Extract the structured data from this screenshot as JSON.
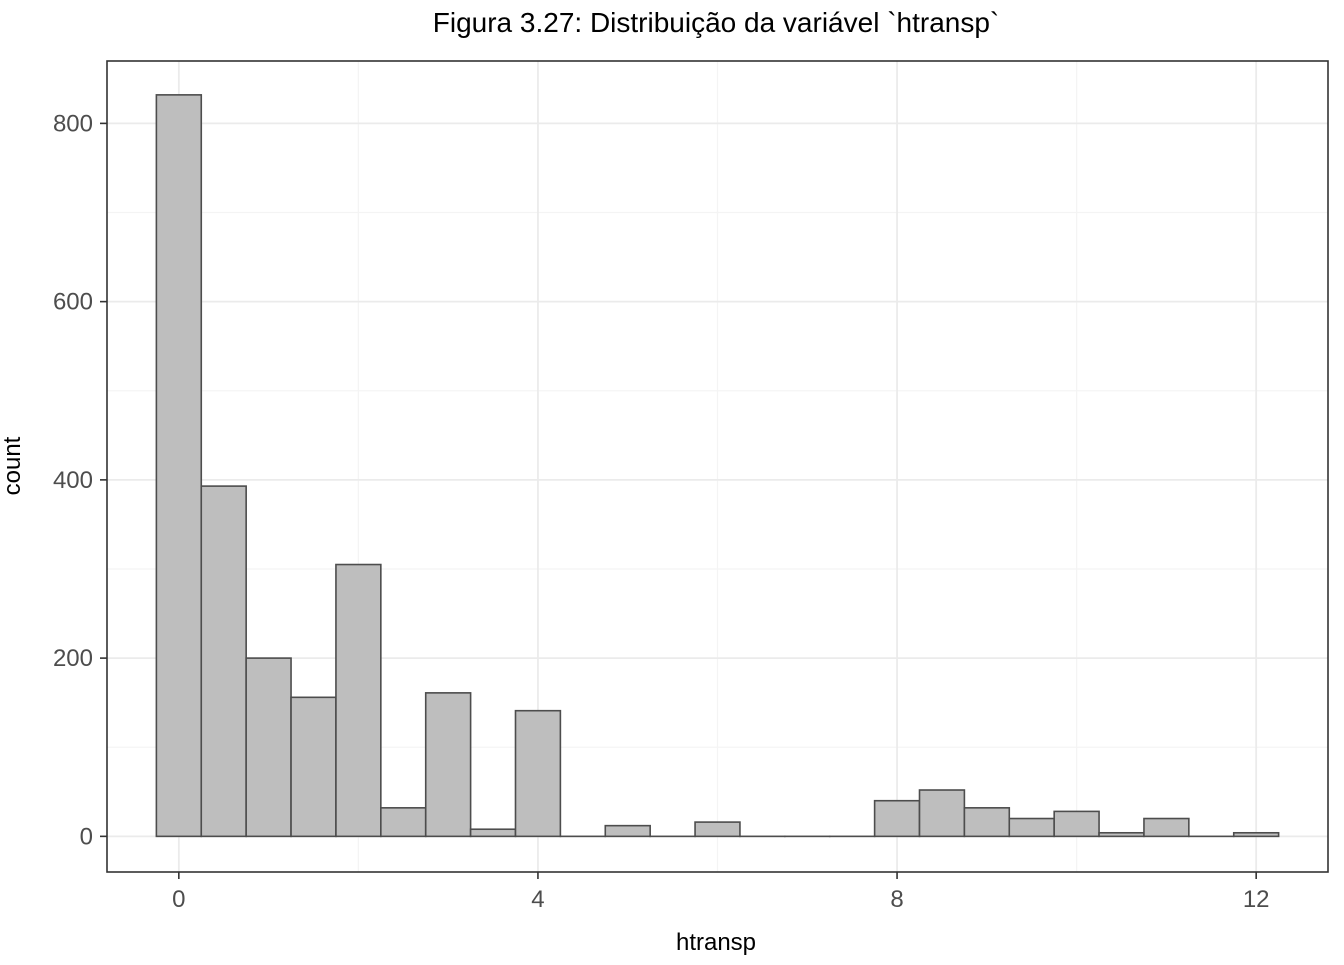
{
  "chart_data": {
    "type": "bar",
    "title": "Figura 3.27: Distribuição da variável `htransp`",
    "xlabel": "htransp",
    "ylabel": "count",
    "xlim": [
      -0.8,
      12.8
    ],
    "ylim": [
      -40,
      870
    ],
    "x_ticks": [
      0,
      4,
      8,
      12
    ],
    "y_ticks": [
      0,
      200,
      400,
      600,
      800
    ],
    "x_minor_ticks": [
      2,
      6,
      10
    ],
    "y_minor_ticks": [
      100,
      300,
      500,
      700
    ],
    "bin_width": 0.5,
    "bin_centers": [
      0,
      0.5,
      1,
      1.5,
      2,
      2.5,
      3,
      3.5,
      4,
      4.5,
      5,
      5.5,
      6,
      6.5,
      7,
      7.5,
      8,
      8.5,
      9,
      9.5,
      10,
      10.5,
      11,
      11.5,
      12
    ],
    "values": [
      832,
      393,
      200,
      156,
      305,
      32,
      161,
      8,
      141,
      0,
      12,
      0,
      16,
      0,
      0,
      0,
      40,
      52,
      32,
      20,
      28,
      4,
      20,
      0,
      4
    ],
    "grid": true,
    "colors": {
      "bar_fill": "#bebebe",
      "bar_stroke": "#4d4d4d",
      "grid_major": "#ebebeb",
      "grid_minor": "#f4f4f4",
      "panel_border": "#333333",
      "axis_text": "#4d4d4d",
      "title_text": "#000000"
    }
  }
}
